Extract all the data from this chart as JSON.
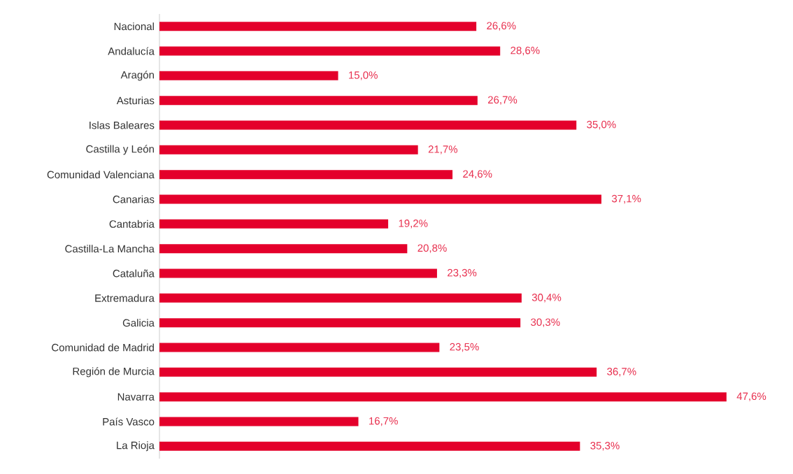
{
  "chart_data": {
    "type": "bar",
    "orientation": "horizontal",
    "color": "#e4002b",
    "categories": [
      "Nacional",
      "Andalucía",
      "Aragón",
      "Asturias",
      "Islas Baleares",
      "Castilla y León",
      "Comunidad Valenciana",
      "Canarias",
      "Cantabria",
      "Castilla-La Mancha",
      "Cataluña",
      "Extremadura",
      "Galicia",
      "Comunidad de Madrid",
      "Región de Murcia",
      "Navarra",
      "País Vasco",
      "La Rioja"
    ],
    "values": [
      26.6,
      28.6,
      15.0,
      26.7,
      35.0,
      21.7,
      24.6,
      37.1,
      19.2,
      20.8,
      23.3,
      30.4,
      30.3,
      23.5,
      36.7,
      47.6,
      16.7,
      35.3
    ],
    "value_labels": [
      "26,6%",
      "28,6%",
      "15,0%",
      "26,7%",
      "35,0%",
      "21,7%",
      "24,6%",
      "37,1%",
      "19,2%",
      "20,8%",
      "23,3%",
      "30,4%",
      "30,3%",
      "23,5%",
      "36,7%",
      "47,6%",
      "16,7%",
      "35,3%"
    ]
  }
}
